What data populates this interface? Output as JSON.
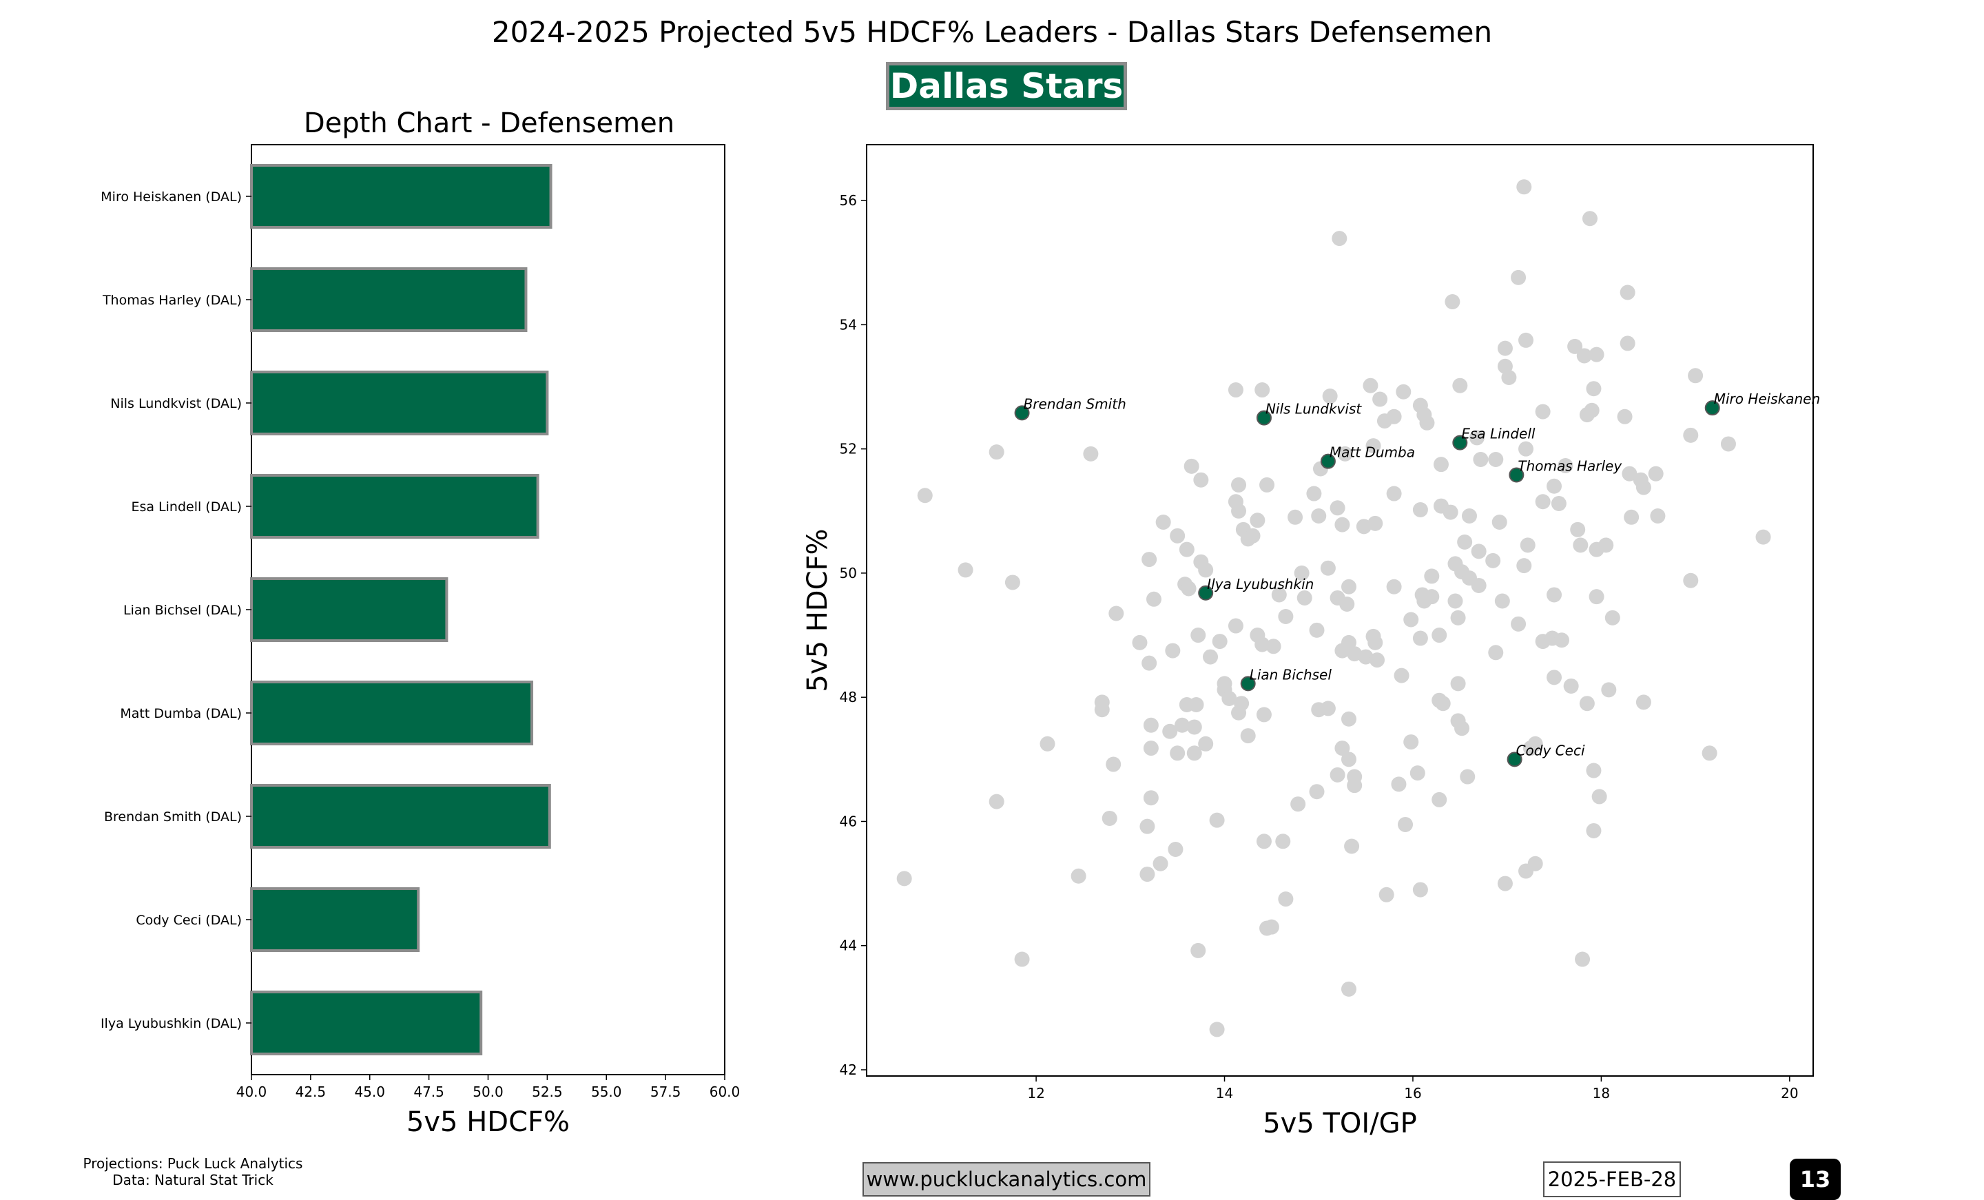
{
  "header": {
    "title": "2024-2025 Projected 5v5 HDCF% Leaders - Dallas Stars Defensemen",
    "team_badge": "Dallas Stars",
    "team_color": "#006847"
  },
  "footer": {
    "credit_line1": "Projections: Puck Luck Analytics",
    "credit_line2": "Data: Natural Stat Trick",
    "website": "www.puckluckanalytics.com",
    "date": "2025-FEB-28",
    "page_number": "13"
  },
  "chart_data": [
    {
      "type": "bar",
      "orientation": "horizontal",
      "title": "Depth Chart - Defensemen",
      "xlabel": "5v5 HDCF%",
      "ylabel": "",
      "xlim": [
        40,
        60
      ],
      "xticks": [
        "40.0",
        "42.5",
        "45.0",
        "47.5",
        "50.0",
        "52.5",
        "55.0",
        "57.5",
        "60.0"
      ],
      "bar_color": "#006847",
      "edge_color": "#8c8c8c",
      "categories": [
        "Miro Heiskanen (DAL)",
        "Thomas Harley (DAL)",
        "Nils Lundkvist (DAL)",
        "Esa Lindell (DAL)",
        "Lian Bichsel (DAL)",
        "Matt Dumba (DAL)",
        "Brendan Smith (DAL)",
        "Cody Ceci (DAL)",
        "Ilya Lyubushkin (DAL)"
      ],
      "values": [
        52.65,
        51.6,
        52.5,
        52.1,
        48.25,
        51.85,
        52.6,
        47.05,
        49.7
      ]
    },
    {
      "type": "scatter",
      "title": "",
      "xlabel": "5v5 TOI/GP",
      "ylabel": "5v5 HDCF%",
      "xlim": [
        10.2,
        20.25
      ],
      "ylim": [
        41.9,
        56.9
      ],
      "xticks": [
        "12",
        "14",
        "16",
        "18",
        "20"
      ],
      "yticks": [
        "42",
        "44",
        "46",
        "48",
        "50",
        "52",
        "54",
        "56"
      ],
      "background_color": "#d3d3d3",
      "highlight_color": "#006847",
      "highlighted": [
        {
          "label": "Brendan Smith",
          "x": 11.85,
          "y": 52.58
        },
        {
          "label": "Nils Lundkvist",
          "x": 14.42,
          "y": 52.5
        },
        {
          "label": "Esa Lindell",
          "x": 16.5,
          "y": 52.1
        },
        {
          "label": "Matt Dumba",
          "x": 15.1,
          "y": 51.8
        },
        {
          "label": "Thomas Harley",
          "x": 17.1,
          "y": 51.58
        },
        {
          "label": "Miro Heiskanen",
          "x": 19.18,
          "y": 52.66
        },
        {
          "label": "Ilya Lyubushkin",
          "x": 13.8,
          "y": 49.68
        },
        {
          "label": "Lian Bichsel",
          "x": 14.25,
          "y": 48.22
        },
        {
          "label": "Cody Ceci",
          "x": 17.08,
          "y": 47.0
        }
      ],
      "background_points": [
        [
          17.18,
          56.22
        ],
        [
          17.88,
          55.71
        ],
        [
          15.22,
          55.39
        ],
        [
          17.12,
          54.76
        ],
        [
          18.28,
          54.52
        ],
        [
          16.42,
          54.37
        ],
        [
          17.2,
          53.75
        ],
        [
          18.28,
          53.7
        ],
        [
          17.72,
          53.65
        ],
        [
          16.98,
          53.62
        ],
        [
          17.82,
          53.5
        ],
        [
          17.95,
          53.52
        ],
        [
          16.98,
          53.33
        ],
        [
          17.02,
          53.15
        ],
        [
          19.0,
          53.18
        ],
        [
          15.55,
          53.02
        ],
        [
          16.5,
          53.02
        ],
        [
          14.12,
          52.95
        ],
        [
          14.4,
          52.95
        ],
        [
          17.92,
          52.97
        ],
        [
          15.12,
          52.85
        ],
        [
          15.65,
          52.8
        ],
        [
          15.9,
          52.92
        ],
        [
          16.08,
          52.7
        ],
        [
          16.12,
          52.55
        ],
        [
          15.8,
          52.52
        ],
        [
          15.58,
          52.05
        ],
        [
          15.7,
          52.45
        ],
        [
          16.15,
          52.42
        ],
        [
          17.38,
          52.6
        ],
        [
          17.85,
          52.55
        ],
        [
          17.9,
          52.62
        ],
        [
          18.25,
          52.52
        ],
        [
          16.68,
          52.18
        ],
        [
          17.2,
          52.0
        ],
        [
          18.95,
          52.22
        ],
        [
          19.35,
          52.08
        ],
        [
          11.58,
          51.95
        ],
        [
          12.58,
          51.92
        ],
        [
          15.28,
          51.92
        ],
        [
          16.3,
          51.75
        ],
        [
          16.72,
          51.83
        ],
        [
          16.88,
          51.83
        ],
        [
          17.62,
          51.73
        ],
        [
          18.3,
          51.6
        ],
        [
          18.42,
          51.5
        ],
        [
          18.45,
          51.38
        ],
        [
          18.58,
          51.6
        ],
        [
          13.65,
          51.72
        ],
        [
          13.75,
          51.5
        ],
        [
          15.02,
          51.68
        ],
        [
          14.15,
          51.42
        ],
        [
          14.45,
          51.42
        ],
        [
          14.95,
          51.28
        ],
        [
          15.8,
          51.28
        ],
        [
          17.5,
          51.4
        ],
        [
          17.38,
          51.15
        ],
        [
          17.55,
          51.12
        ],
        [
          10.82,
          51.25
        ],
        [
          14.12,
          51.15
        ],
        [
          14.15,
          51.0
        ],
        [
          14.35,
          50.85
        ],
        [
          14.75,
          50.9
        ],
        [
          15.0,
          50.92
        ],
        [
          15.2,
          51.05
        ],
        [
          15.25,
          50.78
        ],
        [
          15.48,
          50.75
        ],
        [
          15.6,
          50.8
        ],
        [
          16.08,
          51.02
        ],
        [
          16.3,
          51.08
        ],
        [
          16.4,
          50.98
        ],
        [
          16.6,
          50.92
        ],
        [
          16.92,
          50.82
        ],
        [
          18.32,
          50.9
        ],
        [
          18.6,
          50.92
        ],
        [
          13.35,
          50.82
        ],
        [
          13.5,
          50.6
        ],
        [
          13.6,
          50.38
        ],
        [
          13.75,
          50.18
        ],
        [
          13.8,
          50.05
        ],
        [
          14.2,
          50.7
        ],
        [
          14.25,
          50.55
        ],
        [
          14.3,
          50.6
        ],
        [
          14.82,
          50.0
        ],
        [
          15.1,
          50.08
        ],
        [
          16.55,
          50.5
        ],
        [
          16.7,
          50.35
        ],
        [
          17.22,
          50.45
        ],
        [
          17.75,
          50.7
        ],
        [
          17.78,
          50.45
        ],
        [
          17.95,
          50.38
        ],
        [
          18.05,
          50.45
        ],
        [
          19.72,
          50.58
        ],
        [
          11.25,
          50.05
        ],
        [
          11.75,
          49.85
        ],
        [
          13.2,
          50.22
        ],
        [
          13.58,
          49.82
        ],
        [
          13.62,
          49.75
        ],
        [
          14.58,
          49.65
        ],
        [
          14.85,
          49.6
        ],
        [
          15.2,
          49.6
        ],
        [
          15.3,
          49.5
        ],
        [
          15.32,
          49.78
        ],
        [
          15.8,
          49.78
        ],
        [
          16.1,
          49.65
        ],
        [
          16.12,
          49.55
        ],
        [
          16.2,
          49.95
        ],
        [
          16.2,
          49.62
        ],
        [
          16.45,
          50.15
        ],
        [
          16.45,
          49.55
        ],
        [
          16.52,
          50.02
        ],
        [
          16.6,
          49.92
        ],
        [
          16.7,
          49.8
        ],
        [
          16.85,
          50.2
        ],
        [
          16.95,
          49.55
        ],
        [
          17.18,
          50.12
        ],
        [
          17.5,
          49.65
        ],
        [
          17.95,
          49.62
        ],
        [
          18.95,
          49.88
        ],
        [
          12.85,
          49.35
        ],
        [
          13.25,
          49.58
        ],
        [
          13.1,
          48.88
        ],
        [
          13.2,
          48.55
        ],
        [
          13.45,
          48.75
        ],
        [
          13.72,
          49.0
        ],
        [
          13.85,
          48.65
        ],
        [
          13.95,
          48.9
        ],
        [
          14.12,
          49.15
        ],
        [
          14.35,
          49.0
        ],
        [
          14.4,
          48.85
        ],
        [
          14.52,
          48.82
        ],
        [
          14.65,
          49.3
        ],
        [
          14.98,
          49.08
        ],
        [
          15.25,
          48.75
        ],
        [
          15.32,
          48.88
        ],
        [
          15.38,
          48.7
        ],
        [
          15.5,
          48.65
        ],
        [
          15.58,
          48.98
        ],
        [
          15.6,
          48.88
        ],
        [
          15.62,
          48.6
        ],
        [
          15.98,
          49.25
        ],
        [
          16.08,
          48.95
        ],
        [
          16.28,
          49.0
        ],
        [
          16.48,
          49.28
        ],
        [
          16.88,
          48.72
        ],
        [
          17.12,
          49.18
        ],
        [
          17.38,
          48.9
        ],
        [
          17.48,
          48.95
        ],
        [
          17.58,
          48.92
        ],
        [
          18.12,
          49.28
        ],
        [
          14.0,
          48.22
        ],
        [
          14.0,
          48.12
        ],
        [
          14.05,
          47.98
        ],
        [
          13.6,
          47.88
        ],
        [
          13.7,
          47.88
        ],
        [
          14.15,
          47.75
        ],
        [
          14.18,
          47.9
        ],
        [
          14.42,
          47.72
        ],
        [
          15.0,
          47.8
        ],
        [
          15.1,
          47.82
        ],
        [
          15.32,
          47.65
        ],
        [
          15.88,
          48.35
        ],
        [
          16.28,
          47.95
        ],
        [
          16.32,
          47.9
        ],
        [
          16.48,
          48.22
        ],
        [
          16.48,
          47.62
        ],
        [
          16.52,
          47.5
        ],
        [
          17.5,
          48.32
        ],
        [
          17.68,
          48.18
        ],
        [
          17.85,
          47.9
        ],
        [
          18.08,
          48.12
        ],
        [
          18.45,
          47.92
        ],
        [
          12.7,
          47.92
        ],
        [
          12.7,
          47.8
        ],
        [
          13.22,
          47.55
        ],
        [
          13.42,
          47.45
        ],
        [
          13.55,
          47.55
        ],
        [
          13.68,
          47.52
        ],
        [
          13.8,
          47.25
        ],
        [
          13.5,
          47.1
        ],
        [
          13.68,
          47.1
        ],
        [
          14.25,
          47.38
        ],
        [
          13.22,
          47.18
        ],
        [
          12.12,
          47.25
        ],
        [
          15.25,
          47.18
        ],
        [
          15.32,
          47.0
        ],
        [
          15.98,
          47.28
        ],
        [
          17.3,
          47.25
        ],
        [
          17.25,
          47.18
        ],
        [
          19.15,
          47.1
        ],
        [
          12.82,
          46.92
        ],
        [
          15.2,
          46.75
        ],
        [
          15.38,
          46.72
        ],
        [
          15.38,
          46.58
        ],
        [
          15.85,
          46.6
        ],
        [
          16.05,
          46.78
        ],
        [
          16.58,
          46.72
        ],
        [
          17.92,
          46.82
        ],
        [
          11.58,
          46.32
        ],
        [
          13.22,
          46.38
        ],
        [
          14.78,
          46.28
        ],
        [
          14.98,
          46.48
        ],
        [
          16.28,
          46.35
        ],
        [
          17.98,
          46.4
        ],
        [
          12.78,
          46.05
        ],
        [
          13.18,
          45.92
        ],
        [
          13.92,
          46.02
        ],
        [
          15.92,
          45.95
        ],
        [
          17.92,
          45.85
        ],
        [
          13.48,
          45.55
        ],
        [
          13.32,
          45.32
        ],
        [
          14.42,
          45.68
        ],
        [
          14.62,
          45.68
        ],
        [
          15.35,
          45.6
        ],
        [
          17.3,
          45.32
        ],
        [
          17.2,
          45.2
        ],
        [
          10.6,
          45.08
        ],
        [
          12.45,
          45.12
        ],
        [
          13.18,
          45.15
        ],
        [
          15.72,
          44.82
        ],
        [
          16.08,
          44.9
        ],
        [
          16.98,
          45.0
        ],
        [
          14.65,
          44.75
        ],
        [
          14.45,
          44.28
        ],
        [
          14.5,
          44.3
        ],
        [
          11.85,
          43.78
        ],
        [
          13.72,
          43.92
        ],
        [
          17.8,
          43.78
        ],
        [
          15.32,
          43.3
        ],
        [
          13.92,
          42.65
        ]
      ]
    }
  ]
}
